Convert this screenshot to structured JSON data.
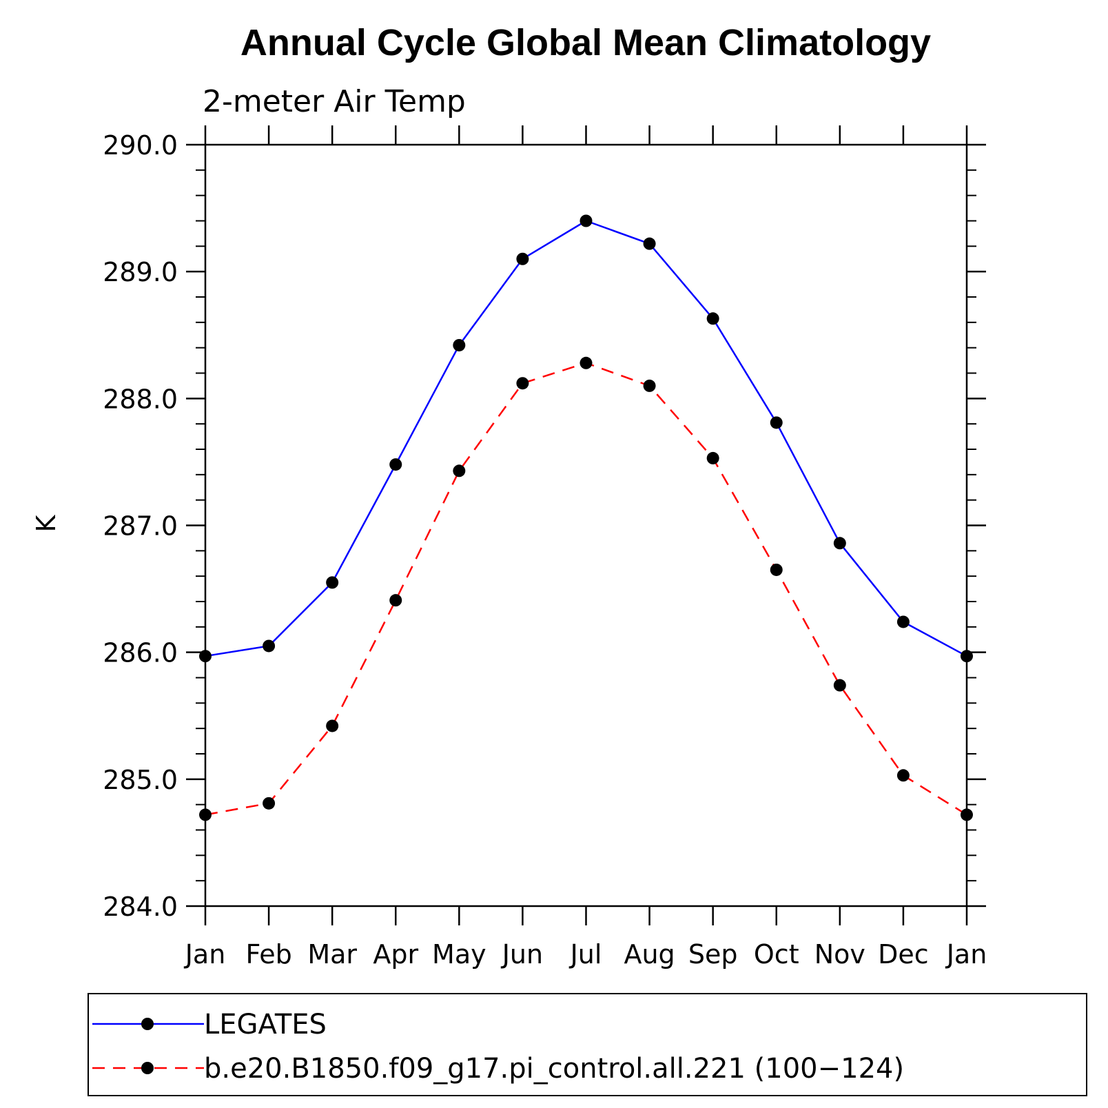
{
  "chart_data": {
    "type": "line",
    "title": "Annual Cycle Global Mean Climatology",
    "subtitle": "2-meter Air Temp",
    "ylabel": "K",
    "xlabel": "",
    "categories": [
      "Jan",
      "Feb",
      "Mar",
      "Apr",
      "May",
      "Jun",
      "Jul",
      "Aug",
      "Sep",
      "Oct",
      "Nov",
      "Dec",
      "Jan"
    ],
    "ylim": [
      284.0,
      290.0
    ],
    "yticks": [
      "284.0",
      "285.0",
      "286.0",
      "287.0",
      "288.0",
      "289.0",
      "290.0"
    ],
    "y_minor_step": 0.2,
    "grid": false,
    "legend_position": "bottom",
    "series": [
      {
        "name": "LEGATES",
        "color": "#0000ff",
        "line_style": "solid",
        "marker": "filled-circle",
        "values": [
          285.97,
          286.05,
          286.55,
          287.48,
          288.42,
          289.1,
          289.4,
          289.22,
          288.63,
          287.81,
          286.86,
          286.24,
          285.97
        ]
      },
      {
        "name": "b.e20.B1850.f09_g17.pi_control.all.221 (100−124)",
        "color": "#ff0000",
        "line_style": "dashed",
        "marker": "filled-circle",
        "values": [
          284.72,
          284.81,
          285.42,
          286.41,
          287.43,
          288.12,
          288.28,
          288.1,
          287.53,
          286.65,
          285.74,
          285.03,
          284.72
        ]
      }
    ]
  }
}
